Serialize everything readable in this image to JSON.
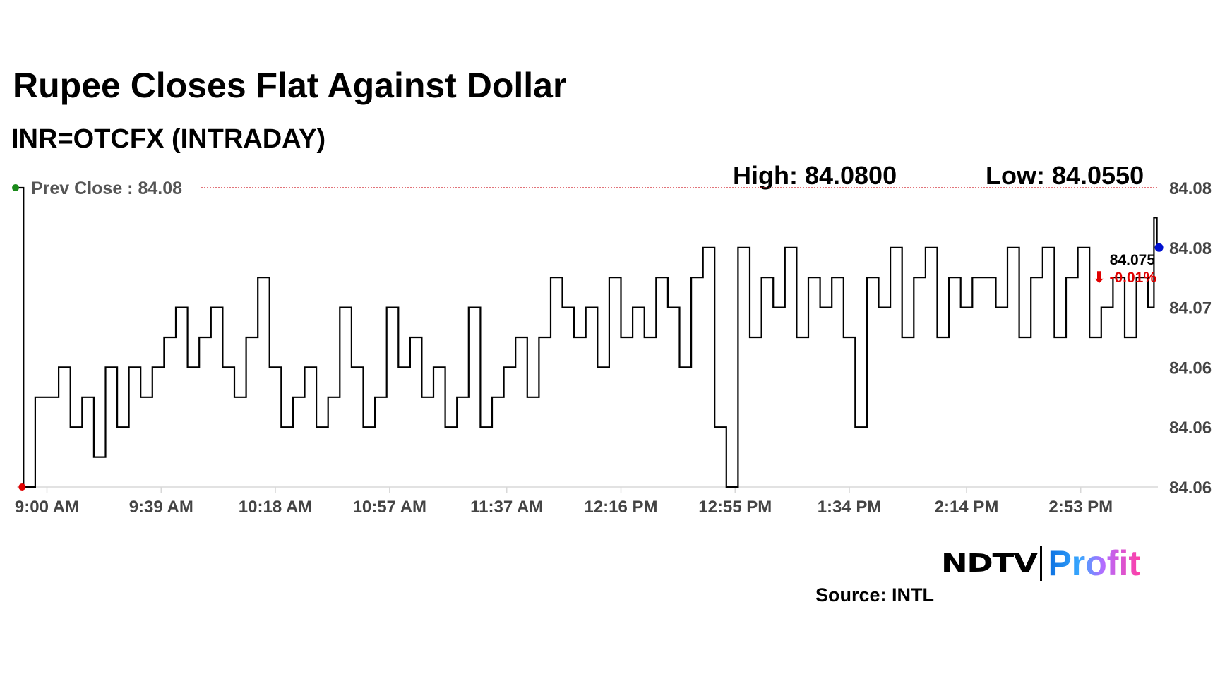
{
  "header": {
    "title": "Rupee Closes Flat Against Dollar",
    "subtitle": "INR=OTCFX (INTRADAY)"
  },
  "stats": {
    "high": "High: 84.0800",
    "low": "Low: 84.0550",
    "prev_close": "Prev Close : 84.08"
  },
  "last": {
    "value": "84.075",
    "change": "⬇ -0.01%"
  },
  "footer": {
    "source": "Source: INTL",
    "logo_ndtv": "NDTV",
    "logo_profit": "Profit"
  },
  "colors": {
    "line": "#000000",
    "prev_close_line": "#d0202a",
    "change": "#e00000",
    "last_dot": "#0010d0",
    "start_dot": "#1a8a1a",
    "low_dot": "#e00000"
  },
  "chart_data": {
    "type": "line",
    "title": "Rupee Closes Flat Against Dollar",
    "ylim": [
      84.055,
      84.08
    ],
    "yticks": [
      84.08,
      84.075,
      84.07,
      84.065,
      84.06,
      84.055
    ],
    "ytick_labels": [
      "84.08",
      "84.08",
      "84.07",
      "84.06",
      "84.06",
      "84.06"
    ],
    "xticks": [
      "09:00",
      "09:39",
      "10:18",
      "10:57",
      "11:37",
      "12:16",
      "12:55",
      "13:34",
      "14:14",
      "14:53"
    ],
    "xtick_labels": [
      "9:00 AM",
      "9:39 AM",
      "10:18 AM",
      "10:57 AM",
      "11:37 AM",
      "12:16 PM",
      "12:55 PM",
      "1:34 PM",
      "2:14 PM",
      "2:53 PM"
    ],
    "prev_close": 84.08,
    "grid": false,
    "x": [
      "08:50",
      "08:52",
      "08:56",
      "09:00",
      "09:04",
      "09:08",
      "09:12",
      "09:16",
      "09:20",
      "09:24",
      "09:28",
      "09:32",
      "09:36",
      "09:40",
      "09:44",
      "09:48",
      "09:52",
      "09:56",
      "10:00",
      "10:04",
      "10:08",
      "10:12",
      "10:16",
      "10:20",
      "10:24",
      "10:28",
      "10:32",
      "10:36",
      "10:40",
      "10:44",
      "10:48",
      "10:52",
      "10:56",
      "11:00",
      "11:04",
      "11:08",
      "11:12",
      "11:16",
      "11:20",
      "11:24",
      "11:28",
      "11:32",
      "11:36",
      "11:40",
      "11:44",
      "11:48",
      "11:52",
      "11:56",
      "12:00",
      "12:04",
      "12:08",
      "12:12",
      "12:16",
      "12:20",
      "12:24",
      "12:28",
      "12:32",
      "12:36",
      "12:40",
      "12:44",
      "12:48",
      "12:52",
      "12:56",
      "13:00",
      "13:04",
      "13:08",
      "13:12",
      "13:16",
      "13:20",
      "13:24",
      "13:28",
      "13:32",
      "13:36",
      "13:40",
      "13:44",
      "13:48",
      "13:52",
      "13:56",
      "14:00",
      "14:04",
      "14:08",
      "14:12",
      "14:16",
      "14:20",
      "14:24",
      "14:28",
      "14:32",
      "14:36",
      "14:40",
      "14:44",
      "14:48",
      "14:52",
      "14:56",
      "15:00",
      "15:04",
      "15:08",
      "15:12",
      "15:16",
      "15:18",
      "15:19"
    ],
    "y": [
      84.08,
      84.055,
      84.0625,
      84.0625,
      84.065,
      84.06,
      84.0625,
      84.0575,
      84.065,
      84.06,
      84.065,
      84.0625,
      84.065,
      84.0675,
      84.07,
      84.065,
      84.0675,
      84.07,
      84.065,
      84.0625,
      84.0675,
      84.0725,
      84.065,
      84.06,
      84.0625,
      84.065,
      84.06,
      84.0625,
      84.07,
      84.065,
      84.06,
      84.0625,
      84.07,
      84.065,
      84.0675,
      84.0625,
      84.065,
      84.06,
      84.0625,
      84.07,
      84.06,
      84.0625,
      84.065,
      84.0675,
      84.0625,
      84.0675,
      84.0725,
      84.07,
      84.0675,
      84.07,
      84.065,
      84.0725,
      84.0675,
      84.07,
      84.0675,
      84.0725,
      84.07,
      84.065,
      84.0725,
      84.075,
      84.06,
      84.055,
      84.075,
      84.0675,
      84.0725,
      84.07,
      84.075,
      84.0675,
      84.0725,
      84.07,
      84.0725,
      84.0675,
      84.06,
      84.0725,
      84.07,
      84.075,
      84.0675,
      84.0725,
      84.075,
      84.0675,
      84.0725,
      84.07,
      84.0725,
      84.0725,
      84.07,
      84.075,
      84.0675,
      84.0725,
      84.075,
      84.0675,
      84.0725,
      84.075,
      84.0675,
      84.07,
      84.0725,
      84.0675,
      84.0725,
      84.07,
      84.0775,
      84.075
    ]
  }
}
